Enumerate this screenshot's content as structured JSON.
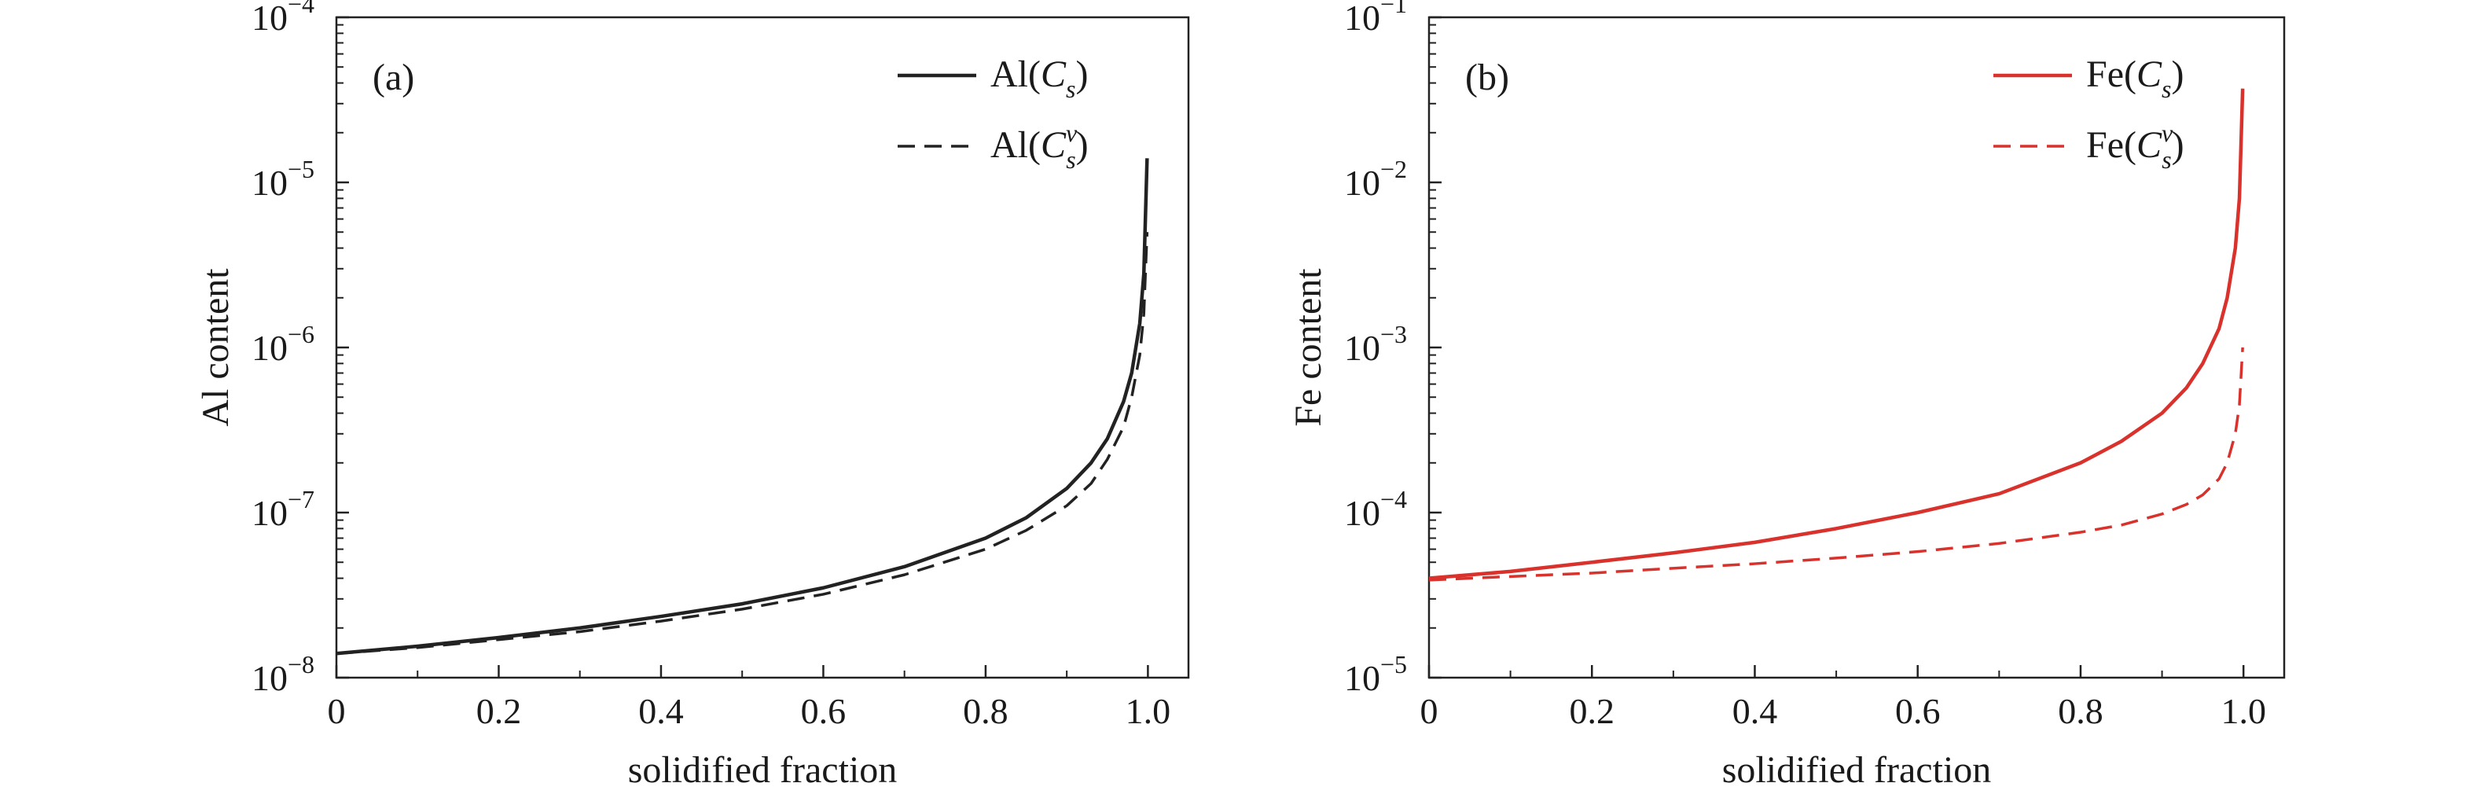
{
  "chart_data": [
    {
      "type": "line",
      "panel_label": "(a)",
      "xlabel": "solidified fraction",
      "ylabel": "Al content",
      "yscale": "log",
      "xlim": [
        0,
        1.05
      ],
      "ylim": [
        1e-08,
        0.0001
      ],
      "x_ticks": [
        "0",
        "0.2",
        "0.4",
        "0.6",
        "0.8",
        "1.0"
      ],
      "y_ticks": [
        {
          "base": "10",
          "exp": "−4"
        },
        {
          "base": "10",
          "exp": "−5"
        },
        {
          "base": "10",
          "exp": "−6"
        },
        {
          "base": "10",
          "exp": "−7"
        },
        {
          "base": "10",
          "exp": "−8"
        }
      ],
      "legend_position": "top-right",
      "grid": false,
      "series": [
        {
          "name": "Al(Cs)",
          "legend": {
            "prefix": "Al(",
            "var": "C",
            "sub": "s",
            "sup": "",
            "suffix": ")"
          },
          "style": "solid",
          "color": "#222222",
          "x": [
            0,
            0.1,
            0.2,
            0.3,
            0.4,
            0.5,
            0.6,
            0.7,
            0.8,
            0.85,
            0.9,
            0.93,
            0.95,
            0.97,
            0.98,
            0.99,
            0.995,
            0.999
          ],
          "y": [
            1.4e-08,
            1.55e-08,
            1.75e-08,
            2e-08,
            2.35e-08,
            2.8e-08,
            3.5e-08,
            4.7e-08,
            7e-08,
            9.3e-08,
            1.4e-07,
            2e-07,
            2.8e-07,
            4.7e-07,
            7e-07,
            1.4e-06,
            2.8e-06,
            1.4e-05
          ]
        },
        {
          "name": "Al(Csv)",
          "legend": {
            "prefix": "Al(",
            "var": "C",
            "sub": "s",
            "sup": "v",
            "suffix": ")"
          },
          "style": "dashed",
          "color": "#222222",
          "x": [
            0,
            0.1,
            0.2,
            0.3,
            0.4,
            0.5,
            0.6,
            0.7,
            0.8,
            0.85,
            0.9,
            0.93,
            0.95,
            0.97,
            0.98,
            0.99,
            0.995,
            0.999
          ],
          "y": [
            1.4e-08,
            1.52e-08,
            1.7e-08,
            1.9e-08,
            2.2e-08,
            2.6e-08,
            3.2e-08,
            4.2e-08,
            6e-08,
            7.8e-08,
            1.1e-07,
            1.5e-07,
            2.1e-07,
            3.3e-07,
            5e-07,
            9e-07,
            1.6e-06,
            5e-06
          ]
        }
      ]
    },
    {
      "type": "line",
      "panel_label": "(b)",
      "xlabel": "solidified fraction",
      "ylabel": "Fe content",
      "yscale": "log",
      "xlim": [
        0,
        1.05
      ],
      "ylim": [
        1e-05,
        0.1
      ],
      "x_ticks": [
        "0",
        "0.2",
        "0.4",
        "0.6",
        "0.8",
        "1.0"
      ],
      "y_ticks": [
        {
          "base": "10",
          "exp": "−1"
        },
        {
          "base": "10",
          "exp": "−2"
        },
        {
          "base": "10",
          "exp": "−3"
        },
        {
          "base": "10",
          "exp": "−4"
        },
        {
          "base": "10",
          "exp": "−5"
        }
      ],
      "legend_position": "top-right",
      "grid": false,
      "series": [
        {
          "name": "Fe(Cs)",
          "legend": {
            "prefix": "Fe(",
            "var": "C",
            "sub": "s",
            "sup": "",
            "suffix": ")"
          },
          "style": "solid",
          "color": "#d9312b",
          "x": [
            0,
            0.1,
            0.2,
            0.3,
            0.4,
            0.5,
            0.6,
            0.7,
            0.8,
            0.85,
            0.9,
            0.93,
            0.95,
            0.97,
            0.98,
            0.99,
            0.995,
            0.999
          ],
          "y": [
            4e-05,
            4.4e-05,
            5e-05,
            5.7e-05,
            6.6e-05,
            8e-05,
            0.0001,
            0.00013,
            0.0002,
            0.00027,
            0.0004,
            0.00057,
            0.0008,
            0.0013,
            0.002,
            0.004,
            0.008,
            0.037
          ]
        },
        {
          "name": "Fe(Csv)",
          "legend": {
            "prefix": "Fe(",
            "var": "C",
            "sub": "s",
            "sup": "v",
            "suffix": ")"
          },
          "style": "dashed",
          "color": "#d9312b",
          "x": [
            0,
            0.1,
            0.2,
            0.3,
            0.4,
            0.5,
            0.6,
            0.7,
            0.8,
            0.85,
            0.9,
            0.93,
            0.95,
            0.97,
            0.98,
            0.99,
            0.995,
            0.999
          ],
          "y": [
            3.9e-05,
            4.1e-05,
            4.3e-05,
            4.6e-05,
            4.9e-05,
            5.3e-05,
            5.8e-05,
            6.5e-05,
            7.6e-05,
            8.4e-05,
            9.8e-05,
            0.000112,
            0.000128,
            0.00016,
            0.0002,
            0.0003,
            0.00045,
            0.001
          ]
        }
      ]
    }
  ]
}
